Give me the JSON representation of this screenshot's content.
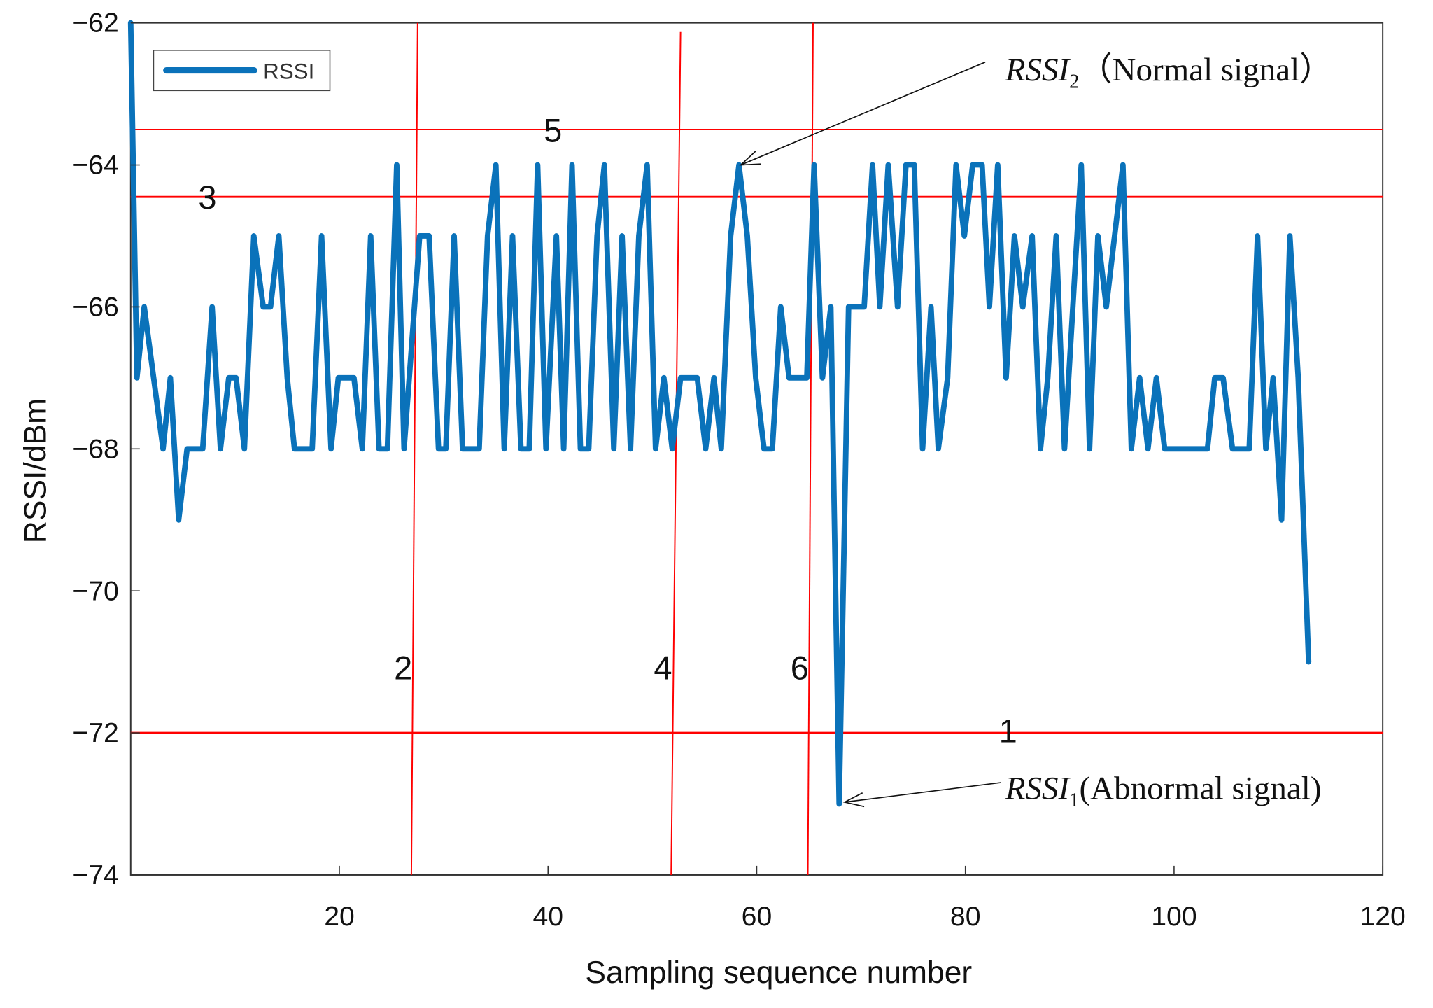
{
  "chart_data": {
    "type": "line",
    "xlabel": "Sampling sequence number",
    "ylabel": "RSSI/dBm",
    "xlim": [
      0,
      120
    ],
    "ylim": [
      -74,
      -62
    ],
    "xticks": [
      20,
      40,
      60,
      80,
      100,
      120
    ],
    "yticks": [
      -62,
      -64,
      -66,
      -68,
      -70,
      -72,
      -74
    ],
    "grid": false,
    "legend": {
      "placement": "top-left",
      "entries": [
        "RSSI"
      ]
    },
    "colors": {
      "series": "#0a72ba",
      "reference": "#ff0000",
      "axis": "#333333"
    },
    "series": [
      {
        "name": "RSSI",
        "points": [
          [
            0,
            -62
          ],
          [
            0.6,
            -67
          ],
          [
            1.3,
            -66
          ],
          [
            3.1,
            -68
          ],
          [
            3.8,
            -67
          ],
          [
            4.6,
            -69
          ],
          [
            5.4,
            -68
          ],
          [
            6.9,
            -68
          ],
          [
            7.8,
            -66
          ],
          [
            8.6,
            -68
          ],
          [
            9.4,
            -67
          ],
          [
            10.1,
            -67
          ],
          [
            10.9,
            -68
          ],
          [
            11.8,
            -65
          ],
          [
            12.7,
            -66
          ],
          [
            13.4,
            -66
          ],
          [
            14.2,
            -65
          ],
          [
            15.0,
            -67
          ],
          [
            15.7,
            -68
          ],
          [
            17.4,
            -68
          ],
          [
            18.3,
            -65
          ],
          [
            19.2,
            -68
          ],
          [
            19.9,
            -67
          ],
          [
            21.4,
            -67
          ],
          [
            22.2,
            -68
          ],
          [
            23.0,
            -65
          ],
          [
            23.8,
            -68
          ],
          [
            24.6,
            -68
          ],
          [
            25.5,
            -64
          ],
          [
            26.2,
            -68
          ],
          [
            27.7,
            -65
          ],
          [
            28.6,
            -65
          ],
          [
            29.5,
            -68
          ],
          [
            30.2,
            -68
          ],
          [
            31.0,
            -65
          ],
          [
            31.8,
            -68
          ],
          [
            33.4,
            -68
          ],
          [
            34.2,
            -65
          ],
          [
            35.0,
            -64
          ],
          [
            35.8,
            -68
          ],
          [
            36.6,
            -65
          ],
          [
            37.4,
            -68
          ],
          [
            38.2,
            -68
          ],
          [
            39.0,
            -64
          ],
          [
            39.8,
            -68
          ],
          [
            40.8,
            -65
          ],
          [
            41.5,
            -68
          ],
          [
            42.3,
            -64
          ],
          [
            43.1,
            -68
          ],
          [
            43.9,
            -68
          ],
          [
            44.7,
            -65
          ],
          [
            45.4,
            -64
          ],
          [
            46.3,
            -68
          ],
          [
            47.1,
            -65
          ],
          [
            47.9,
            -68
          ],
          [
            48.7,
            -65
          ],
          [
            49.5,
            -64
          ],
          [
            50.3,
            -68
          ],
          [
            51.1,
            -67
          ],
          [
            51.9,
            -68
          ],
          [
            52.7,
            -67
          ],
          [
            54.3,
            -67
          ],
          [
            55.1,
            -68
          ],
          [
            55.9,
            -67
          ],
          [
            56.6,
            -68
          ],
          [
            57.5,
            -65
          ],
          [
            58.3,
            -64
          ],
          [
            59.1,
            -65
          ],
          [
            59.9,
            -67
          ],
          [
            60.7,
            -68
          ],
          [
            61.5,
            -68
          ],
          [
            62.3,
            -66
          ],
          [
            63.1,
            -67
          ],
          [
            64.8,
            -67
          ],
          [
            65.5,
            -64
          ],
          [
            66.3,
            -67
          ],
          [
            67.1,
            -66
          ],
          [
            67.9,
            -73
          ],
          [
            68.8,
            -66
          ],
          [
            70.3,
            -66
          ],
          [
            71.1,
            -64
          ],
          [
            71.8,
            -66
          ],
          [
            72.6,
            -64
          ],
          [
            73.5,
            -66
          ],
          [
            74.3,
            -64
          ],
          [
            75.1,
            -64
          ],
          [
            75.9,
            -68
          ],
          [
            76.7,
            -66
          ],
          [
            77.4,
            -68
          ],
          [
            78.3,
            -67
          ],
          [
            79.1,
            -64
          ],
          [
            79.9,
            -65
          ],
          [
            80.7,
            -64
          ],
          [
            81.6,
            -64
          ],
          [
            82.3,
            -66
          ],
          [
            83.1,
            -64
          ],
          [
            83.9,
            -67
          ],
          [
            84.7,
            -65
          ],
          [
            85.5,
            -66
          ],
          [
            86.4,
            -65
          ],
          [
            87.2,
            -68
          ],
          [
            87.9,
            -67
          ],
          [
            88.7,
            -65
          ],
          [
            89.5,
            -68
          ],
          [
            90.3,
            -66
          ],
          [
            91.1,
            -64
          ],
          [
            91.9,
            -68
          ],
          [
            92.7,
            -65
          ],
          [
            93.5,
            -66
          ],
          [
            94.3,
            -65
          ],
          [
            95.1,
            -64
          ],
          [
            95.9,
            -68
          ],
          [
            96.7,
            -67
          ],
          [
            97.5,
            -68
          ],
          [
            98.3,
            -67
          ],
          [
            99.1,
            -68
          ],
          [
            103.2,
            -68
          ],
          [
            103.9,
            -67
          ],
          [
            104.7,
            -67
          ],
          [
            105.6,
            -68
          ],
          [
            107.2,
            -68
          ],
          [
            108.0,
            -65
          ],
          [
            108.8,
            -68
          ],
          [
            109.5,
            -67
          ],
          [
            110.3,
            -69
          ],
          [
            111.1,
            -65
          ],
          [
            111.9,
            -67
          ],
          [
            112.9,
            -71
          ]
        ]
      }
    ],
    "reference_lines": {
      "horizontal": [
        {
          "label": "5",
          "y": -63.5
        },
        {
          "label": "3",
          "y": -64.45
        },
        {
          "label": "1",
          "y": -72
        }
      ],
      "vertical": [
        {
          "label": "2",
          "x_top": 27.5,
          "x_bottom": 26.9
        },
        {
          "label": "4",
          "x_top": 52.7,
          "x_bottom": 51.8
        },
        {
          "label": "6",
          "x_top": 65.4,
          "x_bottom": 64.9
        }
      ]
    },
    "annotations": [
      {
        "id": "normal",
        "main": "RSSI",
        "sub": "2",
        "rest": "（Normal signal）",
        "target": [
          58.3,
          -64
        ]
      },
      {
        "id": "abnormal",
        "main": "RSSI",
        "sub": "1",
        "rest": "(Abnormal signal)",
        "target": [
          67.9,
          -73
        ]
      }
    ]
  }
}
